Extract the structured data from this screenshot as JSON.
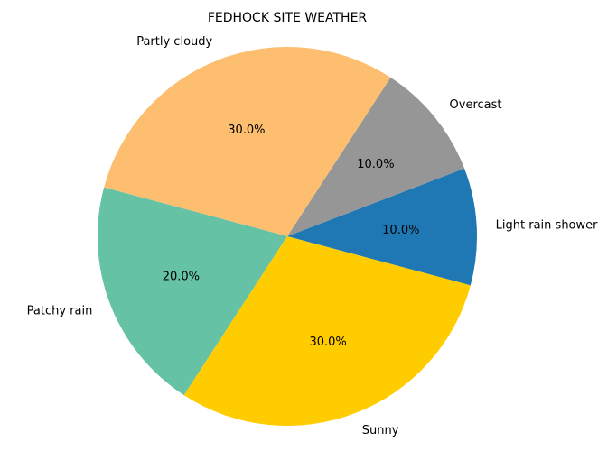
{
  "chart_data": {
    "type": "pie",
    "title": "FEDHOCK SITE WEATHER",
    "slices": [
      {
        "label": "Light rain shower",
        "value": 10.0,
        "pct_label": "10.0%",
        "color": "#1f77b4"
      },
      {
        "label": "Overcast",
        "value": 10.0,
        "pct_label": "10.0%",
        "color": "#969696"
      },
      {
        "label": "Partly cloudy",
        "value": 30.0,
        "pct_label": "30.0%",
        "color": "#fdbf6f"
      },
      {
        "label": "Patchy rain",
        "value": 20.0,
        "pct_label": "20.0%",
        "color": "#66c2a5"
      },
      {
        "label": "Sunny",
        "value": 30.0,
        "pct_label": "30.0%",
        "color": "#ffcc00"
      }
    ],
    "start_angle_deg": -15,
    "direction": "counterclockwise"
  }
}
